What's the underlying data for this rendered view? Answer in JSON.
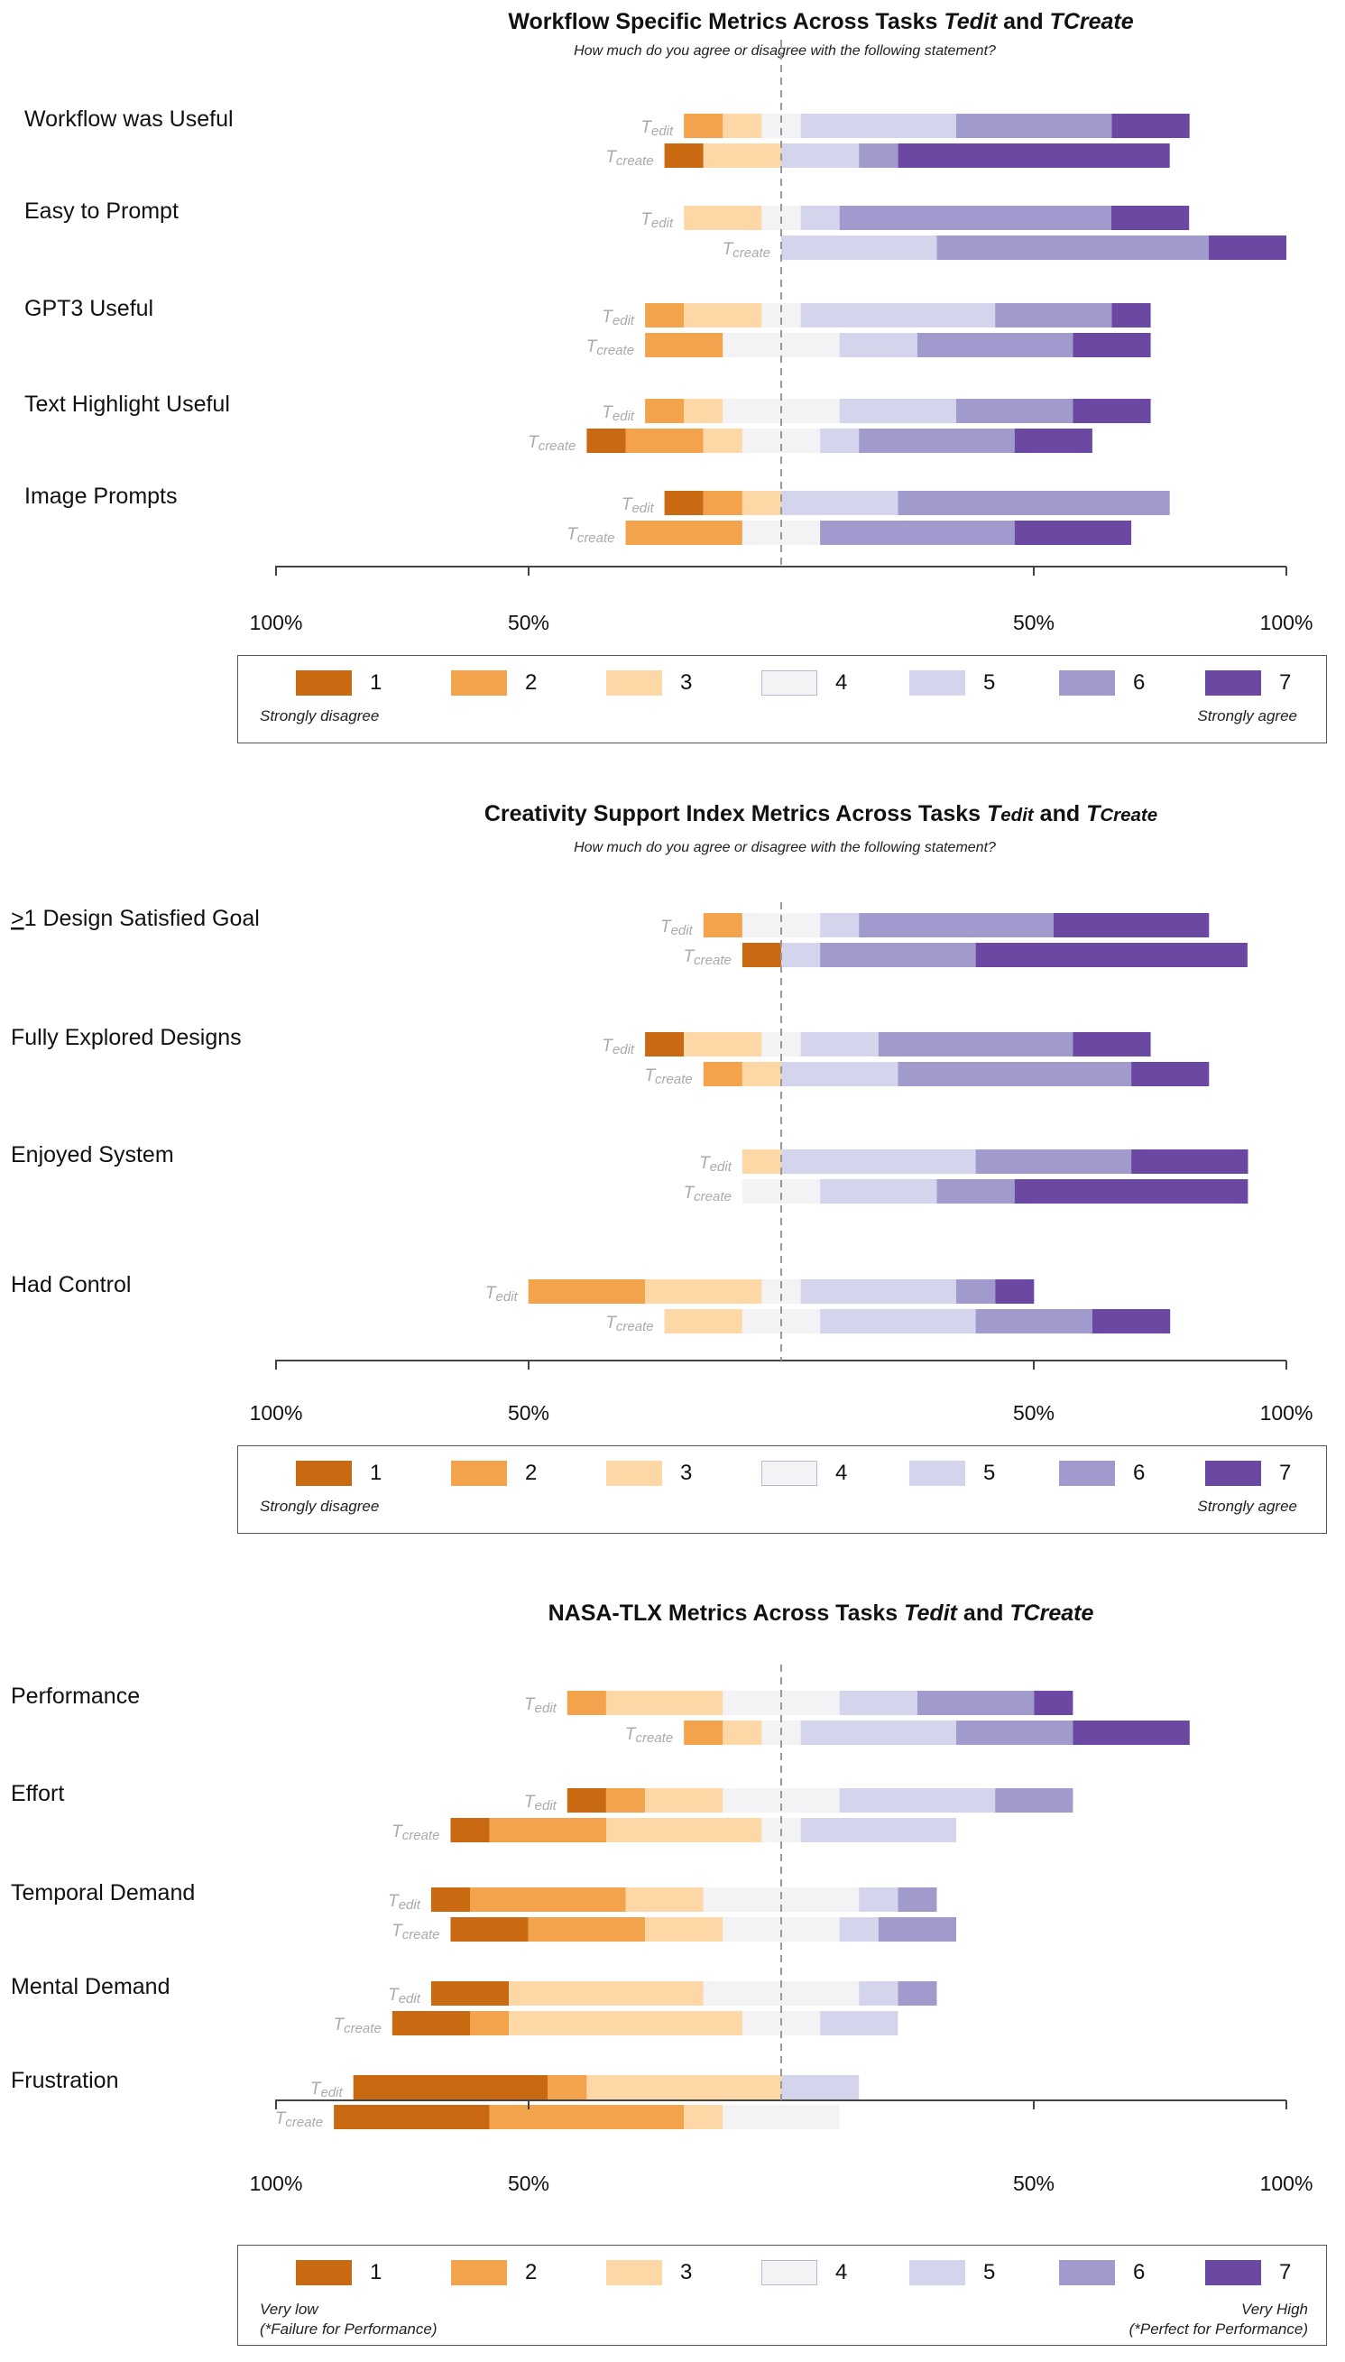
{
  "colors": {
    "likert": [
      "#c96a12",
      "#f3a34c",
      "#fdd7a6",
      "#f3f3f6",
      "#d4d5ec",
      "#a19bcd",
      "#6b49a3"
    ],
    "axis": "#444444",
    "midline": "#999999",
    "task_label": "#aaaaaa"
  },
  "legend": {
    "levels": [
      "1",
      "2",
      "3",
      "4",
      "5",
      "6",
      "7"
    ]
  },
  "charts": [
    {
      "title_parts": [
        "Workflow Specific Metrics Across Tasks ",
        "Tedit",
        " and ",
        "TCreate"
      ],
      "subtitle": "How much do you agree or disagree with the following statement?",
      "axis_ticks": [
        "100%",
        "50%",
        "50%",
        "100%"
      ],
      "legend_left": "Strongly disagree",
      "legend_right": "Strongly agree"
    },
    {
      "title_parts": [
        "Creativity Support Index Metrics Across Tasks ",
        "T",
        "edit",
        " and ",
        "T",
        "Create"
      ],
      "subtitle": "How much do you agree or disagree with the following statement?",
      "axis_ticks": [
        "100%",
        "50%",
        "50%",
        "100%"
      ],
      "legend_left": "Strongly disagree",
      "legend_right": "Strongly agree"
    },
    {
      "title_parts": [
        "NASA-TLX Metrics Across Tasks ",
        "Tedit",
        " and ",
        "TCreate"
      ],
      "subtitle": "",
      "axis_ticks": [
        "100%",
        "50%",
        "50%",
        "100%"
      ],
      "legend_left_lines": [
        "Very low",
        "(*Failure for Performance)"
      ],
      "legend_right_lines": [
        "Very High",
        "(*Perfect for Performance)"
      ]
    }
  ],
  "chart_data": [
    {
      "type": "bar",
      "orientation": "horizontal",
      "stacking": "diverging",
      "title": "Workflow Specific Metrics Across Tasks Tedit and TCreate",
      "subtitle": "How much do you agree or disagree with the following statement?",
      "xlim": [
        -100,
        100
      ],
      "xticklabels": [
        "100%",
        "50%",
        "50%",
        "100%"
      ],
      "series": [
        "1",
        "2",
        "3",
        "4",
        "5",
        "6",
        "7"
      ],
      "categories": [
        {
          "label": "Workflow was Useful",
          "rows": [
            {
              "task": "Tedit",
              "values": [
                0,
                7.7,
                7.7,
                7.7,
                30.8,
                30.8,
                15.4
              ]
            },
            {
              "task": "Tcreate",
              "values": [
                7.7,
                0,
                15.4,
                0,
                15.4,
                7.7,
                53.8
              ]
            }
          ]
        },
        {
          "label": "Easy to Prompt",
          "rows": [
            {
              "task": "Tedit",
              "values": [
                0,
                0,
                15.4,
                7.7,
                7.7,
                53.8,
                15.4
              ]
            },
            {
              "task": "Tcreate",
              "values": [
                0,
                0,
                0,
                0,
                30.8,
                53.8,
                15.4
              ]
            }
          ]
        },
        {
          "label": "GPT3 Useful",
          "rows": [
            {
              "task": "Tedit",
              "values": [
                0,
                7.7,
                15.4,
                7.7,
                38.5,
                23.1,
                7.7
              ]
            },
            {
              "task": "Tcreate",
              "values": [
                0,
                15.4,
                0,
                23.1,
                15.4,
                30.8,
                15.4
              ]
            }
          ]
        },
        {
          "label": "Text Highlight Useful",
          "rows": [
            {
              "task": "Tedit",
              "values": [
                0,
                7.7,
                7.7,
                23.1,
                23.1,
                23.1,
                15.4
              ]
            },
            {
              "task": "Tcreate",
              "values": [
                7.7,
                15.4,
                7.7,
                15.4,
                7.7,
                30.8,
                15.4
              ]
            }
          ]
        },
        {
          "label": "Image Prompts",
          "rows": [
            {
              "task": "Tedit",
              "values": [
                7.7,
                7.7,
                7.7,
                0,
                23.1,
                53.8,
                0
              ]
            },
            {
              "task": "Tcreate",
              "values": [
                0,
                23.1,
                0,
                15.4,
                0,
                38.5,
                23.1
              ]
            }
          ]
        }
      ]
    },
    {
      "type": "bar",
      "orientation": "horizontal",
      "stacking": "diverging",
      "title": "Creativity Support Index Metrics Across Tasks Tedit and TCreate",
      "subtitle": "How much do you agree or disagree with the following statement?",
      "xlim": [
        -100,
        100
      ],
      "xticklabels": [
        "100%",
        "50%",
        "50%",
        "100%"
      ],
      "series": [
        "1",
        "2",
        "3",
        "4",
        "5",
        "6",
        "7"
      ],
      "categories": [
        {
          "label": ">1 Design Satisfied Goal",
          "rows": [
            {
              "task": "Tedit",
              "values": [
                0,
                7.7,
                0,
                15.4,
                7.7,
                38.5,
                30.8
              ]
            },
            {
              "task": "Tcreate",
              "values": [
                7.7,
                0,
                0,
                0,
                7.7,
                30.8,
                53.8
              ]
            }
          ]
        },
        {
          "label": "Fully Explored Designs",
          "rows": [
            {
              "task": "Tedit",
              "values": [
                7.7,
                0,
                15.4,
                7.7,
                15.4,
                38.5,
                15.4
              ]
            },
            {
              "task": "Tcreate",
              "values": [
                0,
                7.7,
                7.7,
                0,
                23.1,
                46.2,
                15.4
              ]
            }
          ]
        },
        {
          "label": "Enjoyed System",
          "rows": [
            {
              "task": "Tedit",
              "values": [
                0,
                0,
                7.7,
                0,
                38.5,
                30.8,
                23.1
              ]
            },
            {
              "task": "Tcreate",
              "values": [
                0,
                0,
                0,
                15.4,
                23.1,
                15.4,
                46.2
              ]
            }
          ]
        },
        {
          "label": "Had Control",
          "rows": [
            {
              "task": "Tedit",
              "values": [
                0,
                23.1,
                23.1,
                7.7,
                30.8,
                7.7,
                7.7
              ]
            },
            {
              "task": "Tcreate",
              "values": [
                0,
                0,
                15.4,
                15.4,
                30.8,
                23.1,
                15.4
              ]
            }
          ]
        }
      ]
    },
    {
      "type": "bar",
      "orientation": "horizontal",
      "stacking": "diverging",
      "title": "NASA-TLX Metrics Across Tasks Tedit and TCreate",
      "xlim": [
        -100,
        100
      ],
      "xticklabels": [
        "100%",
        "50%",
        "50%",
        "100%"
      ],
      "series": [
        "1",
        "2",
        "3",
        "4",
        "5",
        "6",
        "7"
      ],
      "categories": [
        {
          "label": "Performance",
          "rows": [
            {
              "task": "Tedit",
              "values": [
                0,
                7.7,
                23.1,
                23.1,
                15.4,
                23.1,
                7.7
              ]
            },
            {
              "task": "Tcreate",
              "values": [
                0,
                7.7,
                7.7,
                7.7,
                30.8,
                23.1,
                23.1
              ]
            }
          ]
        },
        {
          "label": "Effort",
          "rows": [
            {
              "task": "Tedit",
              "values": [
                7.7,
                7.7,
                15.4,
                23.1,
                30.8,
                15.4,
                0
              ]
            },
            {
              "task": "Tcreate",
              "values": [
                7.7,
                23.1,
                30.8,
                7.7,
                30.8,
                0,
                0
              ]
            }
          ]
        },
        {
          "label": "Temporal Demand",
          "rows": [
            {
              "task": "Tedit",
              "values": [
                7.7,
                30.8,
                15.4,
                30.8,
                7.7,
                7.7,
                0
              ]
            },
            {
              "task": "Tcreate",
              "values": [
                15.4,
                23.1,
                15.4,
                23.1,
                7.7,
                15.4,
                0
              ]
            }
          ]
        },
        {
          "label": "Mental Demand",
          "rows": [
            {
              "task": "Tedit",
              "values": [
                15.4,
                0,
                38.5,
                30.8,
                7.7,
                7.7,
                0
              ]
            },
            {
              "task": "Tcreate",
              "values": [
                15.4,
                7.7,
                46.2,
                15.4,
                15.4,
                0,
                0
              ]
            }
          ]
        },
        {
          "label": "Frustration",
          "rows": [
            {
              "task": "Tedit",
              "values": [
                38.5,
                7.7,
                38.5,
                0,
                15.4,
                0,
                0
              ]
            },
            {
              "task": "Tcreate",
              "values": [
                30.8,
                38.5,
                7.7,
                23.1,
                0,
                0,
                0
              ]
            }
          ]
        }
      ]
    }
  ]
}
